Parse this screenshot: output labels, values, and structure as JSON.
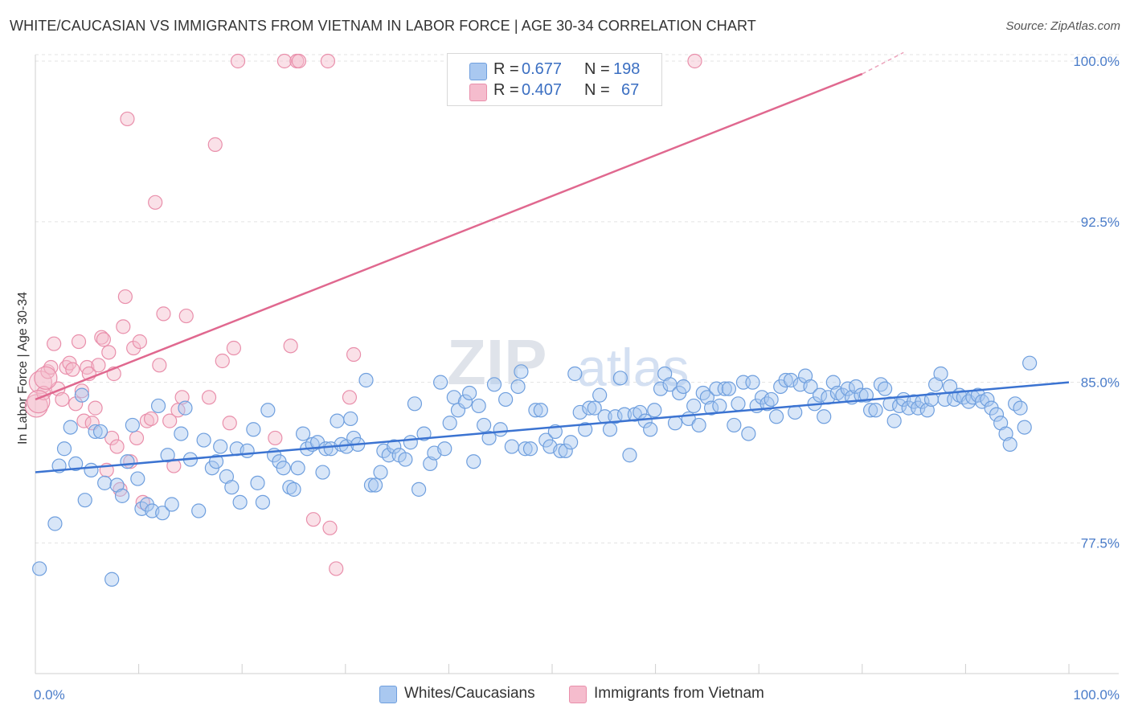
{
  "title": "WHITE/CAUCASIAN VS IMMIGRANTS FROM VIETNAM IN LABOR FORCE | AGE 30-34 CORRELATION CHART",
  "source": "Source: ZipAtlas.com",
  "watermark": {
    "zip": "ZIP",
    "atlas": "atlas"
  },
  "legend_top": {
    "rows": [
      {
        "r_label": "R =",
        "r_value": "0.677",
        "n_label": "N =",
        "n_value": "198"
      },
      {
        "r_label": "R =",
        "r_value": "0.407",
        "n_label": "N =",
        "n_value": "67"
      }
    ]
  },
  "chart_data": {
    "type": "scatter",
    "title": "WHITE/CAUCASIAN VS IMMIGRANTS FROM VIETNAM IN LABOR FORCE | AGE 30-34 CORRELATION CHART",
    "xlabel": "",
    "ylabel": "In Labor Force | Age 30-34",
    "xlim": [
      0,
      100
    ],
    "ylim": [
      71.4,
      100.6
    ],
    "x_tick_labels": [
      "0.0%",
      "100.0%"
    ],
    "y_ticks": [
      77.5,
      85.0,
      92.5,
      100.0
    ],
    "y_tick_labels": [
      "77.5%",
      "85.0%",
      "92.5%",
      "100.0%"
    ],
    "grid": true,
    "legend_position": "bottom",
    "colors": {
      "blue_fill": "#a9c8f0",
      "blue_stroke": "#6f9fde",
      "blue_line": "#3b73d1",
      "pink_fill": "#f5bccd",
      "pink_stroke": "#e98fab",
      "pink_line": "#e0688f"
    },
    "series": [
      {
        "name": "Whites/Caucasians",
        "r": 0.677,
        "n": 198,
        "trend": {
          "x": [
            0,
            100
          ],
          "y": [
            80.8,
            85.0
          ]
        },
        "points": [
          [
            0.4,
            76.3
          ],
          [
            1.9,
            78.4
          ],
          [
            2.3,
            81.1
          ],
          [
            2.8,
            81.9
          ],
          [
            3.4,
            82.9
          ],
          [
            3.9,
            81.2
          ],
          [
            4.5,
            84.4
          ],
          [
            4.8,
            79.5
          ],
          [
            5.4,
            80.9
          ],
          [
            5.8,
            82.7
          ],
          [
            6.3,
            82.7
          ],
          [
            6.7,
            80.3
          ],
          [
            7.4,
            75.8
          ],
          [
            7.9,
            80.2
          ],
          [
            8.4,
            79.7
          ],
          [
            8.9,
            81.3
          ],
          [
            9.4,
            83.0
          ],
          [
            9.9,
            80.5
          ],
          [
            10.3,
            79.1
          ],
          [
            10.8,
            79.3
          ],
          [
            11.3,
            79.0
          ],
          [
            11.9,
            83.9
          ],
          [
            12.3,
            78.9
          ],
          [
            12.8,
            81.6
          ],
          [
            13.2,
            79.3
          ],
          [
            14.1,
            82.6
          ],
          [
            14.5,
            83.8
          ],
          [
            15.0,
            81.4
          ],
          [
            15.8,
            79.0
          ],
          [
            16.3,
            82.3
          ],
          [
            17.1,
            81.0
          ],
          [
            17.5,
            81.3
          ],
          [
            17.9,
            82.0
          ],
          [
            18.5,
            80.6
          ],
          [
            19.0,
            80.1
          ],
          [
            19.5,
            81.9
          ],
          [
            19.8,
            79.4
          ],
          [
            20.5,
            81.8
          ],
          [
            21.1,
            82.8
          ],
          [
            21.5,
            80.3
          ],
          [
            22.0,
            79.4
          ],
          [
            22.5,
            83.7
          ],
          [
            23.1,
            81.6
          ],
          [
            23.6,
            81.3
          ],
          [
            24.0,
            81.0
          ],
          [
            24.6,
            80.1
          ],
          [
            25.0,
            80.0
          ],
          [
            25.4,
            81.0
          ],
          [
            25.9,
            82.6
          ],
          [
            26.3,
            81.9
          ],
          [
            26.8,
            82.1
          ],
          [
            27.3,
            82.2
          ],
          [
            27.8,
            80.8
          ],
          [
            28.1,
            81.9
          ],
          [
            28.6,
            81.9
          ],
          [
            29.2,
            83.2
          ],
          [
            29.6,
            82.1
          ],
          [
            30.1,
            82.0
          ],
          [
            30.5,
            83.3
          ],
          [
            30.8,
            82.4
          ],
          [
            31.2,
            82.1
          ],
          [
            32.0,
            85.1
          ],
          [
            32.5,
            80.2
          ],
          [
            32.9,
            80.2
          ],
          [
            33.4,
            80.8
          ],
          [
            33.7,
            81.8
          ],
          [
            34.2,
            81.6
          ],
          [
            34.7,
            82.0
          ],
          [
            35.2,
            81.6
          ],
          [
            35.8,
            81.4
          ],
          [
            36.3,
            82.2
          ],
          [
            36.7,
            84.0
          ],
          [
            37.1,
            80.0
          ],
          [
            37.6,
            82.6
          ],
          [
            38.2,
            81.2
          ],
          [
            38.6,
            81.7
          ],
          [
            39.2,
            85.0
          ],
          [
            39.6,
            81.9
          ],
          [
            40.1,
            83.1
          ],
          [
            40.5,
            84.3
          ],
          [
            40.9,
            83.7
          ],
          [
            41.6,
            84.1
          ],
          [
            42.0,
            84.5
          ],
          [
            42.4,
            81.3
          ],
          [
            42.9,
            83.9
          ],
          [
            43.4,
            83.0
          ],
          [
            43.9,
            82.4
          ],
          [
            44.4,
            84.9
          ],
          [
            45.0,
            82.8
          ],
          [
            45.5,
            84.2
          ],
          [
            46.1,
            82.0
          ],
          [
            46.7,
            84.8
          ],
          [
            47.0,
            85.5
          ],
          [
            47.4,
            81.9
          ],
          [
            47.9,
            81.9
          ],
          [
            48.4,
            83.7
          ],
          [
            48.9,
            83.7
          ],
          [
            49.4,
            82.3
          ],
          [
            49.8,
            82.0
          ],
          [
            50.3,
            82.7
          ],
          [
            50.8,
            81.8
          ],
          [
            51.3,
            81.8
          ],
          [
            51.8,
            82.2
          ],
          [
            52.2,
            85.4
          ],
          [
            52.7,
            83.6
          ],
          [
            53.2,
            82.8
          ],
          [
            53.6,
            83.8
          ],
          [
            54.1,
            83.8
          ],
          [
            54.6,
            84.4
          ],
          [
            55.1,
            83.4
          ],
          [
            55.6,
            82.8
          ],
          [
            56.1,
            83.4
          ],
          [
            56.6,
            85.2
          ],
          [
            57.0,
            83.5
          ],
          [
            57.5,
            81.6
          ],
          [
            58.0,
            83.5
          ],
          [
            58.5,
            83.6
          ],
          [
            59.0,
            83.2
          ],
          [
            59.5,
            82.8
          ],
          [
            59.9,
            83.7
          ],
          [
            60.5,
            84.7
          ],
          [
            60.9,
            85.4
          ],
          [
            61.4,
            84.9
          ],
          [
            61.9,
            83.1
          ],
          [
            62.3,
            84.5
          ],
          [
            62.7,
            84.8
          ],
          [
            63.2,
            83.3
          ],
          [
            63.7,
            83.9
          ],
          [
            64.2,
            83.0
          ],
          [
            64.6,
            84.5
          ],
          [
            65.0,
            84.3
          ],
          [
            65.4,
            83.8
          ],
          [
            65.9,
            84.7
          ],
          [
            66.2,
            83.9
          ],
          [
            66.7,
            84.7
          ],
          [
            67.1,
            84.7
          ],
          [
            67.6,
            83.0
          ],
          [
            68.0,
            84.0
          ],
          [
            68.5,
            85.0
          ],
          [
            69.0,
            82.6
          ],
          [
            69.4,
            85.0
          ],
          [
            69.8,
            83.9
          ],
          [
            70.3,
            84.3
          ],
          [
            70.8,
            84.0
          ],
          [
            71.2,
            84.2
          ],
          [
            71.7,
            83.4
          ],
          [
            72.1,
            84.8
          ],
          [
            72.6,
            85.1
          ],
          [
            73.1,
            85.1
          ],
          [
            73.5,
            83.6
          ],
          [
            74.0,
            84.9
          ],
          [
            74.5,
            85.3
          ],
          [
            75.0,
            84.8
          ],
          [
            75.4,
            84.0
          ],
          [
            75.9,
            84.4
          ],
          [
            76.3,
            83.4
          ],
          [
            76.7,
            84.3
          ],
          [
            77.2,
            85.0
          ],
          [
            77.6,
            84.5
          ],
          [
            78.1,
            84.4
          ],
          [
            78.6,
            84.7
          ],
          [
            79.0,
            84.3
          ],
          [
            79.4,
            84.8
          ],
          [
            79.9,
            84.4
          ],
          [
            80.4,
            84.4
          ],
          [
            80.8,
            83.7
          ],
          [
            81.3,
            83.7
          ],
          [
            81.8,
            84.9
          ],
          [
            82.2,
            84.7
          ],
          [
            82.7,
            84.0
          ],
          [
            83.1,
            83.2
          ],
          [
            83.6,
            83.9
          ],
          [
            84.0,
            84.2
          ],
          [
            84.5,
            83.8
          ],
          [
            85.0,
            84.1
          ],
          [
            85.4,
            83.8
          ],
          [
            85.8,
            84.1
          ],
          [
            86.3,
            83.7
          ],
          [
            86.7,
            84.2
          ],
          [
            87.1,
            84.9
          ],
          [
            87.6,
            85.4
          ],
          [
            88.0,
            84.2
          ],
          [
            88.5,
            84.8
          ],
          [
            88.9,
            84.2
          ],
          [
            89.4,
            84.4
          ],
          [
            89.8,
            84.3
          ],
          [
            90.3,
            84.1
          ],
          [
            90.7,
            84.3
          ],
          [
            91.2,
            84.4
          ],
          [
            91.6,
            84.1
          ],
          [
            92.1,
            84.2
          ],
          [
            92.5,
            83.8
          ],
          [
            93.0,
            83.5
          ],
          [
            93.4,
            83.1
          ],
          [
            93.9,
            82.6
          ],
          [
            94.3,
            82.1
          ],
          [
            94.8,
            84.0
          ],
          [
            95.3,
            83.8
          ],
          [
            95.7,
            82.9
          ],
          [
            96.2,
            85.9
          ]
        ]
      },
      {
        "name": "Immigrants from Vietnam",
        "r": 0.407,
        "n": 67,
        "trend": {
          "x": [
            0,
            80
          ],
          "y": [
            84.2,
            99.4
          ]
        },
        "trend_dashed": {
          "x": [
            80,
            84
          ],
          "y": [
            99.4,
            100.4
          ]
        },
        "points": [
          [
            0.1,
            83.9
          ],
          [
            0.5,
            85.0
          ],
          [
            0.8,
            84.5
          ],
          [
            1.2,
            85.5
          ],
          [
            1.5,
            85.7
          ],
          [
            1.8,
            86.8
          ],
          [
            2.2,
            84.7
          ],
          [
            2.6,
            84.2
          ],
          [
            3.0,
            85.7
          ],
          [
            3.3,
            85.9
          ],
          [
            3.6,
            85.6
          ],
          [
            3.9,
            84.0
          ],
          [
            4.2,
            86.9
          ],
          [
            4.5,
            84.6
          ],
          [
            4.7,
            83.2
          ],
          [
            5.0,
            85.7
          ],
          [
            5.2,
            85.4
          ],
          [
            5.5,
            83.1
          ],
          [
            5.8,
            83.8
          ],
          [
            6.1,
            85.8
          ],
          [
            6.4,
            87.1
          ],
          [
            6.6,
            87.0
          ],
          [
            6.9,
            80.9
          ],
          [
            7.1,
            86.4
          ],
          [
            7.4,
            82.4
          ],
          [
            7.6,
            85.4
          ],
          [
            7.9,
            82.0
          ],
          [
            8.2,
            80.0
          ],
          [
            8.5,
            87.6
          ],
          [
            8.7,
            89.0
          ],
          [
            8.9,
            97.3
          ],
          [
            9.2,
            81.3
          ],
          [
            9.5,
            86.6
          ],
          [
            9.8,
            82.4
          ],
          [
            10.1,
            86.9
          ],
          [
            10.4,
            79.4
          ],
          [
            10.8,
            83.2
          ],
          [
            11.2,
            83.3
          ],
          [
            11.6,
            93.4
          ],
          [
            12.0,
            85.8
          ],
          [
            12.4,
            88.2
          ],
          [
            13.0,
            83.2
          ],
          [
            13.4,
            81.1
          ],
          [
            13.8,
            83.7
          ],
          [
            14.2,
            84.3
          ],
          [
            14.6,
            88.1
          ],
          [
            16.8,
            84.3
          ],
          [
            17.4,
            96.1
          ],
          [
            18.1,
            86.0
          ],
          [
            18.8,
            83.1
          ],
          [
            19.2,
            86.6
          ],
          [
            19.6,
            100.0
          ],
          [
            23.2,
            82.4
          ],
          [
            24.1,
            100.0
          ],
          [
            24.7,
            86.7
          ],
          [
            25.3,
            100.0
          ],
          [
            25.5,
            100.0
          ],
          [
            26.9,
            78.6
          ],
          [
            28.3,
            100.0
          ],
          [
            28.5,
            78.2
          ],
          [
            29.1,
            76.3
          ],
          [
            30.4,
            84.3
          ],
          [
            30.8,
            86.3
          ],
          [
            54.2,
            100.0
          ],
          [
            63.8,
            100.0
          ],
          [
            1.0,
            85.2
          ],
          [
            0.3,
            84.1
          ]
        ]
      }
    ]
  },
  "legend_bottom": [
    {
      "label": "Whites/Caucasians"
    },
    {
      "label": "Immigrants from Vietnam"
    }
  ]
}
